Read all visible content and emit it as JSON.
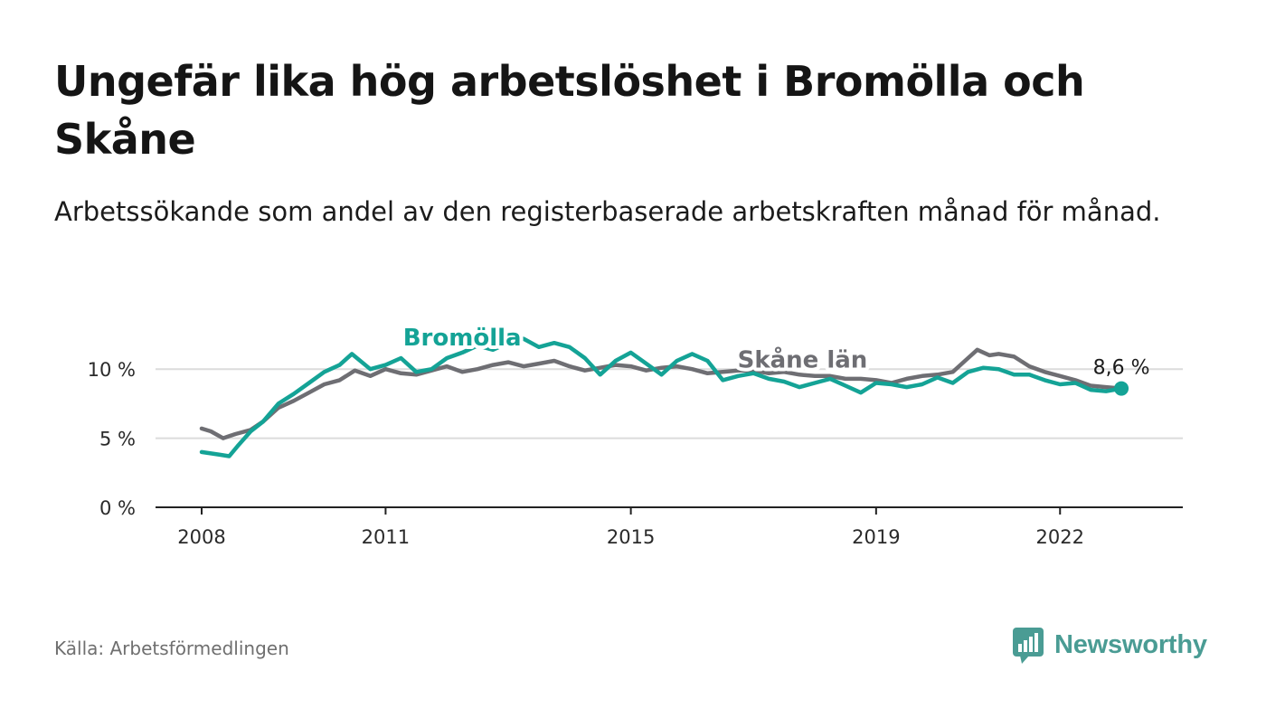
{
  "title": "Ungefär lika hög arbetslöshet i Bromölla och Skåne",
  "subtitle": "Arbetssökande som andel av den registerbaserade arbetskraften månad för månad.",
  "source": "Källa: Arbetsförmedlingen",
  "brand": {
    "name": "Newsworthy",
    "color": "#4a9c94",
    "icon": "bar-chart-speech-icon"
  },
  "chart_data": {
    "type": "line",
    "ylim": [
      0,
      12.5
    ],
    "xlim": [
      2008.0,
      2023.25
    ],
    "yticks": [
      0,
      5,
      10
    ],
    "ytick_labels": [
      "0 %",
      "5 %",
      "10 %"
    ],
    "xticks": [
      2008,
      2011,
      2015,
      2019,
      2022
    ],
    "xtick_labels": [
      "2008",
      "2011",
      "2015",
      "2019",
      "2022"
    ],
    "grid": true,
    "end_label": "8,6 %",
    "series": [
      {
        "name": "Skåne län",
        "color": "#6e6e73",
        "label_at": 2017.8,
        "points": [
          [
            2008.0,
            5.7
          ],
          [
            2008.15,
            5.5
          ],
          [
            2008.35,
            5.0
          ],
          [
            2008.55,
            5.3
          ],
          [
            2008.8,
            5.6
          ],
          [
            2009.0,
            6.2
          ],
          [
            2009.25,
            7.2
          ],
          [
            2009.5,
            7.7
          ],
          [
            2009.75,
            8.3
          ],
          [
            2010.0,
            8.9
          ],
          [
            2010.25,
            9.2
          ],
          [
            2010.5,
            9.9
          ],
          [
            2010.75,
            9.5
          ],
          [
            2011.0,
            10.0
          ],
          [
            2011.25,
            9.7
          ],
          [
            2011.5,
            9.6
          ],
          [
            2011.75,
            9.9
          ],
          [
            2012.0,
            10.2
          ],
          [
            2012.25,
            9.8
          ],
          [
            2012.5,
            10.0
          ],
          [
            2012.75,
            10.3
          ],
          [
            2013.0,
            10.5
          ],
          [
            2013.25,
            10.2
          ],
          [
            2013.5,
            10.4
          ],
          [
            2013.75,
            10.6
          ],
          [
            2014.0,
            10.2
          ],
          [
            2014.25,
            9.9
          ],
          [
            2014.5,
            10.1
          ],
          [
            2014.75,
            10.3
          ],
          [
            2015.0,
            10.2
          ],
          [
            2015.25,
            9.9
          ],
          [
            2015.5,
            10.1
          ],
          [
            2015.75,
            10.2
          ],
          [
            2016.0,
            10.0
          ],
          [
            2016.25,
            9.7
          ],
          [
            2016.5,
            9.8
          ],
          [
            2016.75,
            9.9
          ],
          [
            2017.0,
            9.9
          ],
          [
            2017.25,
            9.7
          ],
          [
            2017.5,
            9.8
          ],
          [
            2017.75,
            9.6
          ],
          [
            2018.0,
            9.5
          ],
          [
            2018.25,
            9.5
          ],
          [
            2018.5,
            9.3
          ],
          [
            2018.75,
            9.3
          ],
          [
            2019.0,
            9.2
          ],
          [
            2019.25,
            9.0
          ],
          [
            2019.5,
            9.3
          ],
          [
            2019.75,
            9.5
          ],
          [
            2020.0,
            9.6
          ],
          [
            2020.25,
            9.8
          ],
          [
            2020.5,
            10.8
          ],
          [
            2020.65,
            11.4
          ],
          [
            2020.85,
            11.0
          ],
          [
            2021.0,
            11.1
          ],
          [
            2021.25,
            10.9
          ],
          [
            2021.5,
            10.2
          ],
          [
            2021.75,
            9.8
          ],
          [
            2022.0,
            9.5
          ],
          [
            2022.25,
            9.2
          ],
          [
            2022.5,
            8.8
          ],
          [
            2022.75,
            8.7
          ],
          [
            2023.0,
            8.6
          ]
        ]
      },
      {
        "name": "Bromölla",
        "color": "#14a396",
        "label_at": 2012.25,
        "points": [
          [
            2008.0,
            4.0
          ],
          [
            2008.15,
            3.9
          ],
          [
            2008.3,
            3.8
          ],
          [
            2008.45,
            3.7
          ],
          [
            2008.6,
            4.5
          ],
          [
            2008.8,
            5.5
          ],
          [
            2009.0,
            6.2
          ],
          [
            2009.25,
            7.5
          ],
          [
            2009.5,
            8.2
          ],
          [
            2009.75,
            9.0
          ],
          [
            2010.0,
            9.8
          ],
          [
            2010.25,
            10.3
          ],
          [
            2010.45,
            11.1
          ],
          [
            2010.75,
            10.0
          ],
          [
            2011.0,
            10.3
          ],
          [
            2011.25,
            10.8
          ],
          [
            2011.5,
            9.8
          ],
          [
            2011.75,
            10.0
          ],
          [
            2012.0,
            10.8
          ],
          [
            2012.25,
            11.2
          ],
          [
            2012.5,
            11.7
          ],
          [
            2012.75,
            11.4
          ],
          [
            2013.0,
            11.9
          ],
          [
            2013.25,
            12.2
          ],
          [
            2013.5,
            11.6
          ],
          [
            2013.75,
            11.9
          ],
          [
            2014.0,
            11.6
          ],
          [
            2014.25,
            10.8
          ],
          [
            2014.5,
            9.6
          ],
          [
            2014.75,
            10.6
          ],
          [
            2015.0,
            11.2
          ],
          [
            2015.25,
            10.4
          ],
          [
            2015.5,
            9.6
          ],
          [
            2015.75,
            10.6
          ],
          [
            2016.0,
            11.1
          ],
          [
            2016.25,
            10.6
          ],
          [
            2016.5,
            9.2
          ],
          [
            2016.75,
            9.5
          ],
          [
            2017.0,
            9.7
          ],
          [
            2017.25,
            9.3
          ],
          [
            2017.5,
            9.1
          ],
          [
            2017.75,
            8.7
          ],
          [
            2018.0,
            9.0
          ],
          [
            2018.25,
            9.3
          ],
          [
            2018.5,
            8.8
          ],
          [
            2018.75,
            8.3
          ],
          [
            2019.0,
            9.0
          ],
          [
            2019.25,
            8.9
          ],
          [
            2019.5,
            8.7
          ],
          [
            2019.75,
            8.9
          ],
          [
            2020.0,
            9.4
          ],
          [
            2020.25,
            9.0
          ],
          [
            2020.5,
            9.8
          ],
          [
            2020.75,
            10.1
          ],
          [
            2021.0,
            10.0
          ],
          [
            2021.25,
            9.6
          ],
          [
            2021.5,
            9.6
          ],
          [
            2021.75,
            9.2
          ],
          [
            2022.0,
            8.9
          ],
          [
            2022.25,
            9.0
          ],
          [
            2022.5,
            8.5
          ],
          [
            2022.75,
            8.4
          ],
          [
            2023.0,
            8.6
          ]
        ]
      }
    ]
  }
}
